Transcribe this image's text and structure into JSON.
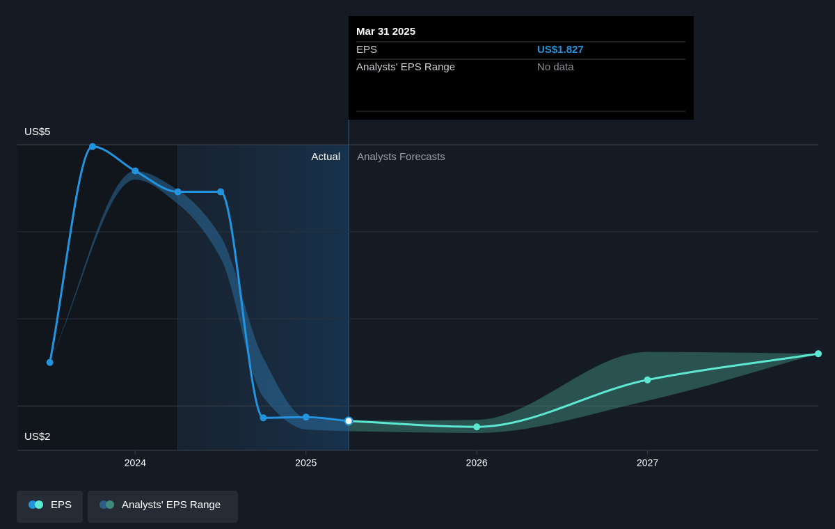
{
  "chart_data": {
    "type": "line",
    "xlim": [
      2023.31,
      2028
    ],
    "xticks": [
      2024,
      2025,
      2026,
      2027
    ],
    "ylim": [
      1.49,
      5
    ],
    "yticks": [
      {
        "value": 5,
        "label": "US$5"
      },
      {
        "value": 2,
        "label": "US$2"
      }
    ],
    "ygrid": [
      4,
      3
    ],
    "forecast_start": 2025.25,
    "actual_label": "Actual",
    "forecast_label": "Analysts Forecasts",
    "series": [
      {
        "name": "EPS",
        "colors": [
          "#2394df",
          "#5de8d2"
        ],
        "x": [
          2023.5,
          2023.75,
          2024,
          2024.25,
          2024.5,
          2024.75,
          2025,
          2025.25,
          2026,
          2027,
          2028
        ],
        "values": [
          2.5,
          4.98,
          4.7,
          4.46,
          4.46,
          1.864,
          1.872,
          1.827,
          1.76,
          2.3,
          2.6
        ]
      },
      {
        "name": "Analysts' EPS Range",
        "colors": [
          "#2c6b9a",
          "#3d8a7c"
        ],
        "x": [
          2023.5,
          2024,
          2024.25,
          2024.5,
          2024.75,
          2025,
          2025.25,
          2026,
          2027,
          2028
        ],
        "low": [
          2.5,
          4.6,
          4.32,
          3.7,
          2.1,
          1.73,
          1.71,
          1.69,
          2.06,
          2.6
        ],
        "high": [
          2.5,
          4.7,
          4.48,
          3.95,
          2.55,
          1.86,
          1.83,
          1.84,
          2.62,
          2.6
        ]
      }
    ],
    "tooltip": {
      "date": "Mar 31 2025",
      "rows": [
        {
          "label": "EPS",
          "value": "US$1.827"
        },
        {
          "label": "Analysts' EPS Range",
          "value": "No data"
        }
      ]
    }
  }
}
